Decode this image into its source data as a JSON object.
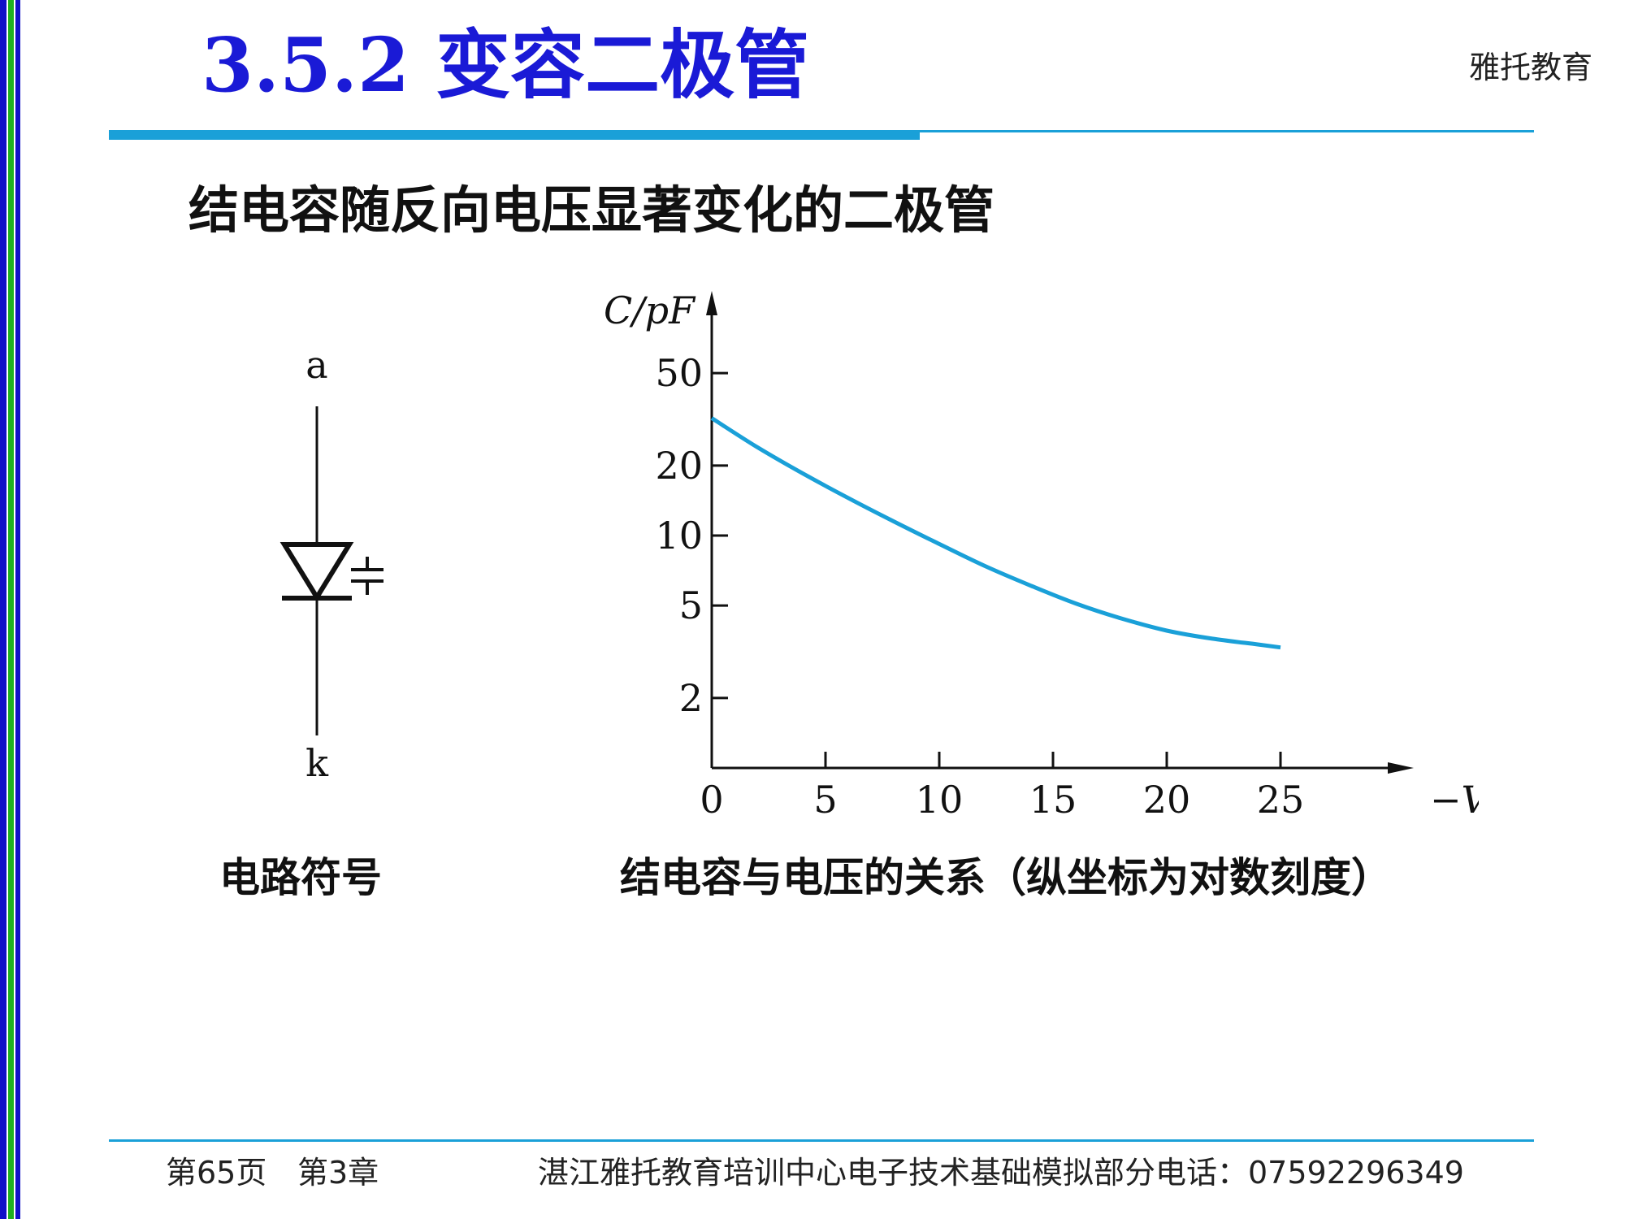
{
  "header": {
    "title": "3.5.2  变容二极管",
    "brand": "雅托教育"
  },
  "subtitle": "结电容随反向电压显著变化的二极管",
  "symbol": {
    "anode_label": "a",
    "cathode_label": "k",
    "caption": "电路符号"
  },
  "chart_caption": "结电容与电压的关系（纵坐标为对数刻度）",
  "footer": {
    "page": "第65页",
    "chapter": "第3章",
    "org_info": "湛江雅托教育培训中心电子技术基础模拟部分电话：07592296349"
  },
  "colors": {
    "title": "#1a1ad6",
    "accent_line": "#1aa0d8",
    "curve": "#1aa0d8",
    "left_bar_blue": "#1010c8",
    "left_bar_green": "#20b020"
  },
  "chart_data": {
    "type": "line",
    "xlabel": "−V/V",
    "ylabel": "C/pF",
    "x_ticks": [
      0,
      5,
      10,
      15,
      20,
      25
    ],
    "y_ticks": [
      2,
      5,
      10,
      20,
      50
    ],
    "y_scale": "log",
    "xlim": [
      0,
      30
    ],
    "ylim": [
      1,
      100
    ],
    "grid": false,
    "series": [
      {
        "x": [
          0,
          2,
          4,
          6,
          8,
          10,
          12,
          14,
          16,
          18,
          20,
          22,
          24,
          25
        ],
        "values": [
          32,
          24,
          18.5,
          14.5,
          11.5,
          9.2,
          7.4,
          6.1,
          5.1,
          4.4,
          3.9,
          3.6,
          3.4,
          3.3
        ]
      }
    ]
  }
}
